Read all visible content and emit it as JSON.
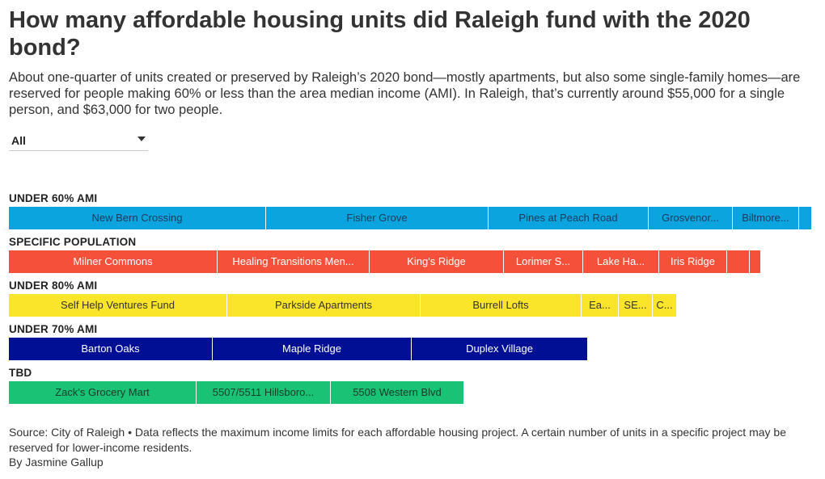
{
  "title": "How many affordable housing units did Raleigh fund with the 2020 bond?",
  "subtitle": "About one-quarter of units created or preserved by Raleigh’s 2020 bond—mostly apartments, but also some single-family homes—are reserved for people making 60% or less than the area median income (AMI). In Raleigh, that’s currently around $55,000 for a single person, and $63,000 for two people.",
  "filter": {
    "selected": "All"
  },
  "chart_data": {
    "type": "bar",
    "orientation": "horizontal-stacked",
    "categories": [
      "UNDER 60% AMI",
      "SPECIFIC POPULATION",
      "UNDER 80% AMI",
      "UNDER 70% AMI",
      "TBD"
    ],
    "colors": {
      "UNDER 60% AMI": "#0ba4de",
      "SPECIFIC POPULATION": "#f5513a",
      "UNDER 80% AMI": "#fbe52a",
      "UNDER 70% AMI": "#000f93",
      "TBD": "#19c274"
    },
    "text_colors": {
      "UNDER 60% AMI": "#1c3a5a",
      "SPECIFIC POPULATION": "#ffffff",
      "UNDER 80% AMI": "#333333",
      "UNDER 70% AMI": "#ffffff",
      "TBD": "#1a3a2a"
    },
    "groups": [
      {
        "label": "UNDER 60% AMI",
        "segments": [
          {
            "name": "New Bern Crossing",
            "value": 318
          },
          {
            "name": "Fisher Grove",
            "value": 275
          },
          {
            "name": "Pines at Peach Road",
            "value": 198
          },
          {
            "name": "Grosvenor...",
            "value": 104
          },
          {
            "name": "Biltmore...",
            "value": 82
          },
          {
            "name": "",
            "value": 16
          }
        ]
      },
      {
        "label": "SPECIFIC POPULATION",
        "segments": [
          {
            "name": "Milner Commons",
            "value": 258
          },
          {
            "name": "Healing Transitions Men...",
            "value": 188
          },
          {
            "name": "King's Ridge",
            "value": 166
          },
          {
            "name": "Lorimer S...",
            "value": 98
          },
          {
            "name": "Lake Ha...",
            "value": 94
          },
          {
            "name": "Iris Ridge",
            "value": 84
          },
          {
            "name": "",
            "value": 28
          },
          {
            "name": "",
            "value": 14
          }
        ]
      },
      {
        "label": "UNDER 80% AMI",
        "segments": [
          {
            "name": "Self Help Ventures Fund",
            "value": 270
          },
          {
            "name": "Parkside Apartments",
            "value": 239
          },
          {
            "name": "Burrell Lofts",
            "value": 199
          },
          {
            "name": "Ea...",
            "value": 46
          },
          {
            "name": "SE...",
            "value": 42
          },
          {
            "name": "C...",
            "value": 30
          }
        ]
      },
      {
        "label": "UNDER 70% AMI",
        "segments": [
          {
            "name": "Barton Oaks",
            "value": 252
          },
          {
            "name": "Maple Ridge",
            "value": 246
          },
          {
            "name": "Duplex Village",
            "value": 218
          }
        ]
      },
      {
        "label": "TBD",
        "segments": [
          {
            "name": "Zack's Grocery Mart",
            "value": 232
          },
          {
            "name": "5507/5511 Hillsboro...",
            "value": 166
          },
          {
            "name": "5508 Western Blvd",
            "value": 165
          }
        ]
      }
    ],
    "xlim": [
      0,
      993
    ]
  },
  "footer": {
    "source": "Source: City of Raleigh • Data reflects the maximum income limits for each affordable housing project. A certain number of units in a specific project may be reserved for lower-income residents.",
    "byline": "By Jasmine Gallup"
  }
}
